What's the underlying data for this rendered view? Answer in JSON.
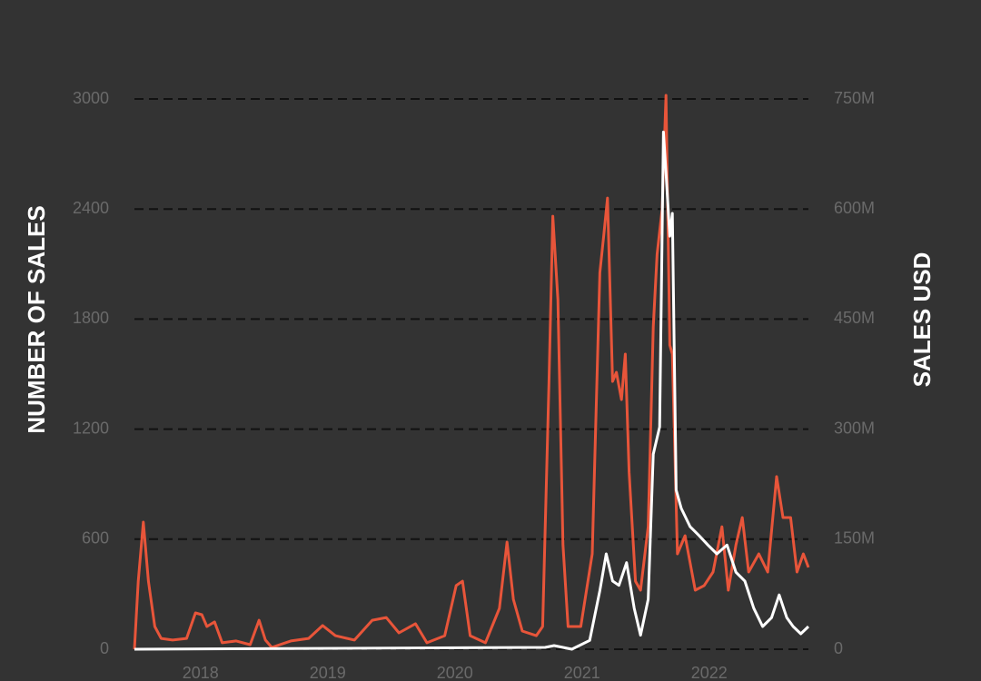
{
  "chart_data": {
    "type": "line",
    "y_label": "NUMBER OF SALES",
    "y2_label": "SALES USD",
    "xlim": [
      2017.48,
      2022.78
    ],
    "xticks": [
      2018,
      2019,
      2020,
      2021,
      2022
    ],
    "ylim": [
      0,
      3000
    ],
    "yticks": [
      0,
      600,
      1200,
      1800,
      2400,
      3000
    ],
    "y2lim": [
      0,
      750000000
    ],
    "y2ticks": [
      {
        "value": 0,
        "label": "0"
      },
      {
        "value": 150000000,
        "label": "150M"
      },
      {
        "value": 300000000,
        "label": "300M"
      },
      {
        "value": 450000000,
        "label": "450M"
      },
      {
        "value": 600000000,
        "label": "600M"
      },
      {
        "value": 750000000,
        "label": "750M"
      }
    ],
    "grid": true,
    "series": [
      {
        "color": "#e8553a",
        "x": [
          2017.48,
          2017.51,
          2017.55,
          2017.59,
          2017.64,
          2017.69,
          2017.78,
          2017.89,
          2017.96,
          2018.01,
          2018.05,
          2018.11,
          2018.17,
          2018.28,
          2018.39,
          2018.46,
          2018.51,
          2018.56,
          2018.71,
          2018.85,
          2018.96,
          2019.06,
          2019.21,
          2019.35,
          2019.46,
          2019.56,
          2019.69,
          2019.78,
          2019.92,
          2020.01,
          2020.06,
          2020.12,
          2020.24,
          2020.35,
          2020.41,
          2020.46,
          2020.53,
          2020.64,
          2020.69,
          2020.74,
          2020.77,
          2020.81,
          2020.85,
          2020.89,
          2020.99,
          2021.08,
          2021.14,
          2021.17,
          2021.2,
          2021.24,
          2021.27,
          2021.31,
          2021.34,
          2021.37,
          2021.42,
          2021.46,
          2021.52,
          2021.56,
          2021.59,
          2021.63,
          2021.66,
          2021.69,
          2021.71,
          2021.75,
          2021.81,
          2021.89,
          2021.96,
          2022.03,
          2022.1,
          2022.15,
          2022.21,
          2022.26,
          2022.31,
          2022.39,
          2022.46,
          2022.53,
          2022.58,
          2022.64,
          2022.69,
          2022.74,
          2022.78
        ],
        "values": [
          0,
          371,
          693,
          371,
          124,
          59,
          50,
          59,
          198,
          188,
          124,
          149,
          35,
          45,
          25,
          158,
          50,
          10,
          45,
          59,
          129,
          74,
          50,
          158,
          173,
          89,
          139,
          35,
          74,
          347,
          371,
          74,
          35,
          223,
          584,
          272,
          99,
          74,
          124,
          1460,
          2361,
          1906,
          569,
          124,
          124,
          520,
          2054,
          2252,
          2460,
          1460,
          1510,
          1361,
          1609,
          965,
          371,
          322,
          668,
          1757,
          2153,
          2401,
          3020,
          1658,
          1609,
          520,
          619,
          322,
          347,
          421,
          668,
          322,
          569,
          718,
          421,
          520,
          421,
          941,
          718,
          718,
          421,
          520,
          446
        ]
      },
      {
        "color": "#ffffff",
        "axis": "y2",
        "x": [
          2017.48,
          2020.71,
          2020.78,
          2020.92,
          2021.06,
          2021.14,
          2021.19,
          2021.24,
          2021.29,
          2021.35,
          2021.41,
          2021.46,
          2021.52,
          2021.56,
          2021.61,
          2021.64,
          2021.66,
          2021.69,
          2021.71,
          2021.74,
          2021.78,
          2021.85,
          2021.92,
          2021.99,
          2022.06,
          2022.14,
          2022.21,
          2022.28,
          2022.35,
          2022.42,
          2022.49,
          2022.55,
          2022.61,
          2022.66,
          2022.72,
          2022.78
        ],
        "values": [
          0,
          2500000,
          5000000,
          0,
          12000000,
          80000000,
          130000000,
          93000000,
          87000000,
          118000000,
          56000000,
          19000000,
          68000000,
          266000000,
          303000000,
          705000000,
          650000000,
          563000000,
          594000000,
          217000000,
          192000000,
          167000000,
          155000000,
          142000000,
          130000000,
          142000000,
          105000000,
          93000000,
          56000000,
          31000000,
          43000000,
          74000000,
          43000000,
          31000000,
          21000000,
          31000000
        ]
      }
    ]
  }
}
